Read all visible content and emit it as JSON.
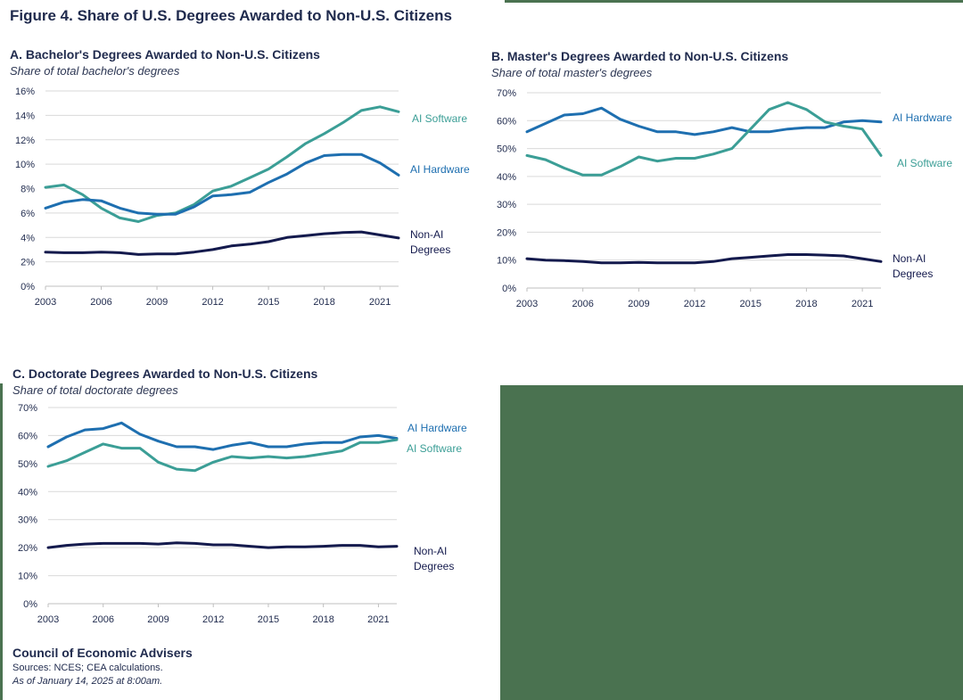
{
  "figure_title": "Figure 4. Share of U.S. Degrees Awarded to Non-U.S. Citizens",
  "colors": {
    "ai_software": "#3b9e96",
    "ai_hardware": "#1e6fb0",
    "non_ai": "#141a4d",
    "grid": "#d9d9d9",
    "background_block": "#4a7250"
  },
  "chart_data": [
    {
      "type": "line",
      "title": "A. Bachelor's Degrees Awarded to Non-U.S. Citizens",
      "subtitle": "Share of total bachelor's degrees",
      "ylim": [
        0,
        16
      ],
      "yticks": [
        "0%",
        "2%",
        "4%",
        "6%",
        "8%",
        "10%",
        "12%",
        "14%",
        "16%"
      ],
      "xticks": [
        "2003",
        "2006",
        "2009",
        "2012",
        "2015",
        "2018",
        "2021"
      ],
      "x": [
        2003,
        2004,
        2005,
        2006,
        2007,
        2008,
        2009,
        2010,
        2011,
        2012,
        2013,
        2014,
        2015,
        2016,
        2017,
        2018,
        2019,
        2020,
        2021,
        2022
      ],
      "series": [
        {
          "key": "ai_software",
          "label_lines": [
            "AI Software"
          ],
          "values": [
            8.1,
            8.3,
            7.5,
            6.4,
            5.6,
            5.3,
            5.8,
            6.0,
            6.7,
            7.8,
            8.2,
            8.9,
            9.6,
            10.6,
            11.7,
            12.5,
            13.4,
            14.4,
            14.7,
            14.3
          ]
        },
        {
          "key": "ai_hardware",
          "label_lines": [
            "AI Hardware"
          ],
          "values": [
            6.4,
            6.9,
            7.1,
            7.0,
            6.4,
            6.0,
            5.9,
            5.9,
            6.5,
            7.4,
            7.5,
            7.7,
            8.5,
            9.2,
            10.1,
            10.7,
            10.8,
            10.8,
            10.1,
            9.1
          ]
        },
        {
          "key": "non_ai",
          "label_lines": [
            "Non-AI",
            "Degrees"
          ],
          "values": [
            2.8,
            2.75,
            2.75,
            2.8,
            2.75,
            2.6,
            2.65,
            2.65,
            2.8,
            3.0,
            3.3,
            3.45,
            3.65,
            4.0,
            4.15,
            4.3,
            4.4,
            4.45,
            4.2,
            3.95
          ]
        }
      ]
    },
    {
      "type": "line",
      "title": "B. Master's Degrees Awarded to Non-U.S. Citizens",
      "subtitle": "Share of total master's degrees",
      "ylim": [
        0,
        70
      ],
      "yticks": [
        "0%",
        "10%",
        "20%",
        "30%",
        "40%",
        "50%",
        "60%",
        "70%"
      ],
      "xticks": [
        "2003",
        "2006",
        "2009",
        "2012",
        "2015",
        "2018",
        "2021"
      ],
      "x": [
        2003,
        2004,
        2005,
        2006,
        2007,
        2008,
        2009,
        2010,
        2011,
        2012,
        2013,
        2014,
        2015,
        2016,
        2017,
        2018,
        2019,
        2020,
        2021,
        2022
      ],
      "series": [
        {
          "key": "ai_hardware",
          "label_lines": [
            "AI Hardware"
          ],
          "values": [
            56,
            59,
            62,
            62.5,
            64.5,
            60.5,
            58,
            56,
            56,
            55,
            56,
            57.5,
            56,
            56,
            57,
            57.5,
            57.5,
            59.5,
            60,
            59.5
          ]
        },
        {
          "key": "ai_software",
          "label_lines": [
            "AI Software"
          ],
          "values": [
            47.5,
            46,
            43,
            40.5,
            40.5,
            43.5,
            47,
            45.5,
            46.5,
            46.5,
            48,
            50,
            57,
            64,
            66.5,
            64,
            59.5,
            58,
            57,
            47.5
          ]
        },
        {
          "key": "non_ai",
          "label_lines": [
            "Non-AI",
            "Degrees"
          ],
          "values": [
            10.5,
            10,
            9.8,
            9.5,
            9,
            9,
            9.2,
            9,
            9,
            9,
            9.5,
            10.5,
            11,
            11.5,
            12,
            12,
            11.8,
            11.5,
            10.5,
            9.5
          ]
        }
      ]
    },
    {
      "type": "line",
      "title": "C. Doctorate Degrees Awarded to Non-U.S. Citizens",
      "subtitle": "Share of total doctorate degrees",
      "ylim": [
        0,
        70
      ],
      "yticks": [
        "0%",
        "10%",
        "20%",
        "30%",
        "40%",
        "50%",
        "60%",
        "70%"
      ],
      "xticks": [
        "2003",
        "2006",
        "2009",
        "2012",
        "2015",
        "2018",
        "2021"
      ],
      "x": [
        2003,
        2004,
        2005,
        2006,
        2007,
        2008,
        2009,
        2010,
        2011,
        2012,
        2013,
        2014,
        2015,
        2016,
        2017,
        2018,
        2019,
        2020,
        2021,
        2022
      ],
      "series": [
        {
          "key": "ai_hardware",
          "label_lines": [
            "AI Hardware"
          ],
          "values": [
            56,
            59.5,
            62,
            62.5,
            64.5,
            60.5,
            58,
            56,
            56,
            55,
            56.5,
            57.5,
            56,
            56,
            57,
            57.5,
            57.5,
            59.5,
            60,
            59
          ]
        },
        {
          "key": "ai_software",
          "label_lines": [
            "AI Software"
          ],
          "values": [
            49,
            51,
            54,
            57,
            55.5,
            55.5,
            50.5,
            48,
            47.5,
            50.5,
            52.5,
            52,
            52.5,
            52,
            52.5,
            53.5,
            54.5,
            57.5,
            57.5,
            58.5
          ]
        },
        {
          "key": "non_ai",
          "label_lines": [
            "Non-AI",
            "Degrees"
          ],
          "values": [
            20,
            20.8,
            21.3,
            21.5,
            21.5,
            21.5,
            21.3,
            21.7,
            21.5,
            21,
            21,
            20.5,
            20,
            20.3,
            20.3,
            20.5,
            20.8,
            20.8,
            20.3,
            20.5
          ]
        }
      ]
    }
  ],
  "footer": {
    "org": "Council of Economic Advisers",
    "sources": "Sources: NCES; CEA calculations.",
    "as_of": "As of January 14, 2025 at 8:00am."
  }
}
